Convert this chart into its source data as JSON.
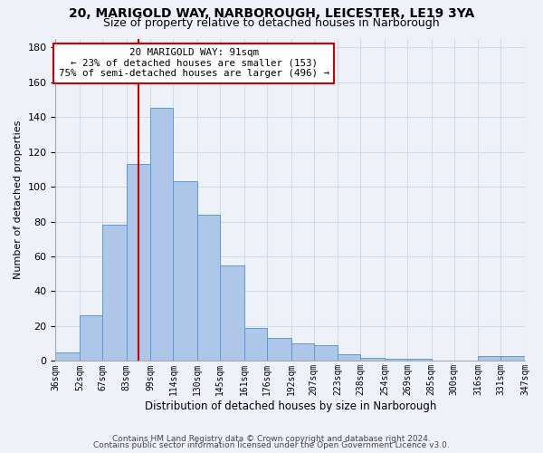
{
  "title_line1": "20, MARIGOLD WAY, NARBOROUGH, LEICESTER, LE19 3YA",
  "title_line2": "Size of property relative to detached houses in Narborough",
  "xlabel": "Distribution of detached houses by size in Narborough",
  "ylabel": "Number of detached properties",
  "footer_line1": "Contains HM Land Registry data © Crown copyright and database right 2024.",
  "footer_line2": "Contains public sector information licensed under the Open Government Licence v3.0.",
  "annotation_line1": "20 MARIGOLD WAY: 91sqm",
  "annotation_line2": "← 23% of detached houses are smaller (153)",
  "annotation_line3": "75% of semi-detached houses are larger (496) →",
  "bar_color": "#aec6e8",
  "bar_edge_color": "#5b9bd5",
  "grid_color": "#d0dce8",
  "background_color": "#eef2f8",
  "vline_color": "#cc0000",
  "vline_x": 91,
  "bin_edges": [
    36,
    52,
    67,
    83,
    99,
    114,
    130,
    145,
    161,
    176,
    192,
    207,
    223,
    238,
    254,
    269,
    285,
    300,
    316,
    331,
    347
  ],
  "bin_labels": [
    "36sqm",
    "52sqm",
    "67sqm",
    "83sqm",
    "99sqm",
    "114sqm",
    "130sqm",
    "145sqm",
    "161sqm",
    "176sqm",
    "192sqm",
    "207sqm",
    "223sqm",
    "238sqm",
    "254sqm",
    "269sqm",
    "285sqm",
    "300sqm",
    "316sqm",
    "331sqm",
    "347sqm"
  ],
  "bar_heights": [
    5,
    26,
    78,
    113,
    145,
    103,
    84,
    55,
    19,
    13,
    10,
    9,
    4,
    2,
    1,
    1,
    0,
    0,
    3,
    3
  ],
  "ylim": [
    0,
    185
  ],
  "yticks": [
    0,
    20,
    40,
    60,
    80,
    100,
    120,
    140,
    160,
    180
  ]
}
